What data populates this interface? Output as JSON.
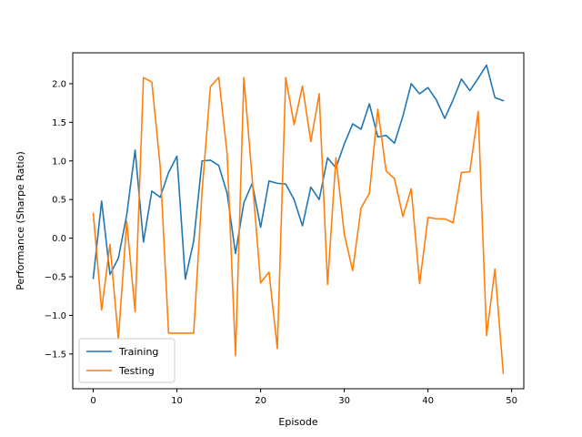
{
  "chart_data": {
    "type": "line",
    "title": "",
    "xlabel": "Episode",
    "ylabel": "Performance (Sharpe Ratio)",
    "xlim": [
      -2.45,
      51.45
    ],
    "ylim": [
      -1.95,
      2.4
    ],
    "x_ticks": [
      0,
      10,
      20,
      30,
      40,
      50
    ],
    "y_ticks": [
      -1.5,
      -1.0,
      -0.5,
      0.0,
      0.5,
      1.0,
      1.5,
      2.0
    ],
    "x_tick_labels": [
      "0",
      "10",
      "20",
      "30",
      "40",
      "50"
    ],
    "y_tick_labels": [
      "−1.5",
      "−1.0",
      "−0.5",
      "0.0",
      "0.5",
      "1.0",
      "1.5",
      "2.0"
    ],
    "grid": false,
    "legend_position": "lower-left",
    "x": [
      0,
      1,
      2,
      3,
      4,
      5,
      6,
      7,
      8,
      9,
      10,
      11,
      12,
      13,
      14,
      15,
      16,
      17,
      18,
      19,
      20,
      21,
      22,
      23,
      24,
      25,
      26,
      27,
      28,
      29,
      30,
      31,
      32,
      33,
      34,
      35,
      36,
      37,
      38,
      39,
      40,
      41,
      42,
      43,
      44,
      45,
      46,
      47,
      48,
      49
    ],
    "series": [
      {
        "name": "Training",
        "color": "#1f77b4",
        "values": [
          -0.52,
          0.48,
          -0.47,
          -0.26,
          0.3,
          1.14,
          -0.05,
          0.61,
          0.53,
          0.85,
          1.06,
          -0.53,
          -0.04,
          1.0,
          1.01,
          0.94,
          0.58,
          -0.2,
          0.46,
          0.71,
          0.14,
          0.74,
          0.71,
          0.7,
          0.5,
          0.16,
          0.66,
          0.5,
          1.04,
          0.91,
          1.22,
          1.48,
          1.41,
          1.74,
          1.31,
          1.33,
          1.23,
          1.58,
          2.0,
          1.87,
          1.95,
          1.79,
          1.55,
          1.79,
          2.06,
          1.91,
          2.07,
          2.24,
          1.82,
          1.78
        ]
      },
      {
        "name": "Testing",
        "color": "#ff7f0e",
        "values": [
          0.32,
          -0.93,
          -0.08,
          -1.31,
          0.22,
          -0.95,
          2.08,
          2.02,
          0.93,
          -1.23,
          -1.23,
          -1.23,
          -1.23,
          0.6,
          1.96,
          2.08,
          1.09,
          -1.52,
          2.08,
          0.76,
          -0.58,
          -0.44,
          -1.43,
          2.08,
          1.47,
          1.97,
          1.25,
          1.87,
          -0.6,
          1.04,
          0.05,
          -0.42,
          0.39,
          0.58,
          1.67,
          0.87,
          0.77,
          0.28,
          0.64,
          -0.59,
          0.27,
          0.25,
          0.25,
          0.2,
          0.85,
          0.86,
          1.64,
          -1.26,
          -0.4,
          -1.75
        ]
      }
    ]
  }
}
